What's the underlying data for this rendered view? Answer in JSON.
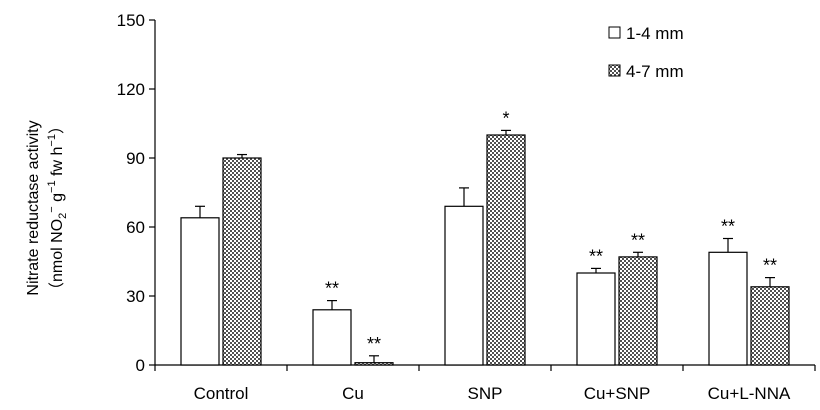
{
  "chart_data": {
    "type": "bar",
    "ylabel_line1": "Nitrate reductase activity",
    "ylabel_line2_parts": [
      "（nmol  NO",
      "2",
      "−",
      " g",
      "−1",
      " fw h",
      "−1",
      "）"
    ],
    "xlabel": "",
    "ylim": [
      0,
      150
    ],
    "yticks": [
      0,
      30,
      60,
      90,
      120,
      150
    ],
    "categories": [
      "Control",
      "Cu",
      "SNP",
      "Cu+SNP",
      "Cu+L-NNA"
    ],
    "series": [
      {
        "name": "1-4 mm",
        "fill": "white",
        "values": [
          64,
          24,
          69,
          40,
          49
        ],
        "errors": [
          5,
          4,
          8,
          2,
          6
        ],
        "significance": [
          "",
          "**",
          "",
          "**",
          "**"
        ]
      },
      {
        "name": "4-7 mm",
        "fill": "hatched",
        "values": [
          90,
          1,
          100,
          47,
          34
        ],
        "errors": [
          1.5,
          3,
          2,
          2,
          4
        ],
        "significance": [
          "",
          "**",
          "*",
          "**",
          "**"
        ]
      }
    ],
    "legend_position": "top-right"
  }
}
